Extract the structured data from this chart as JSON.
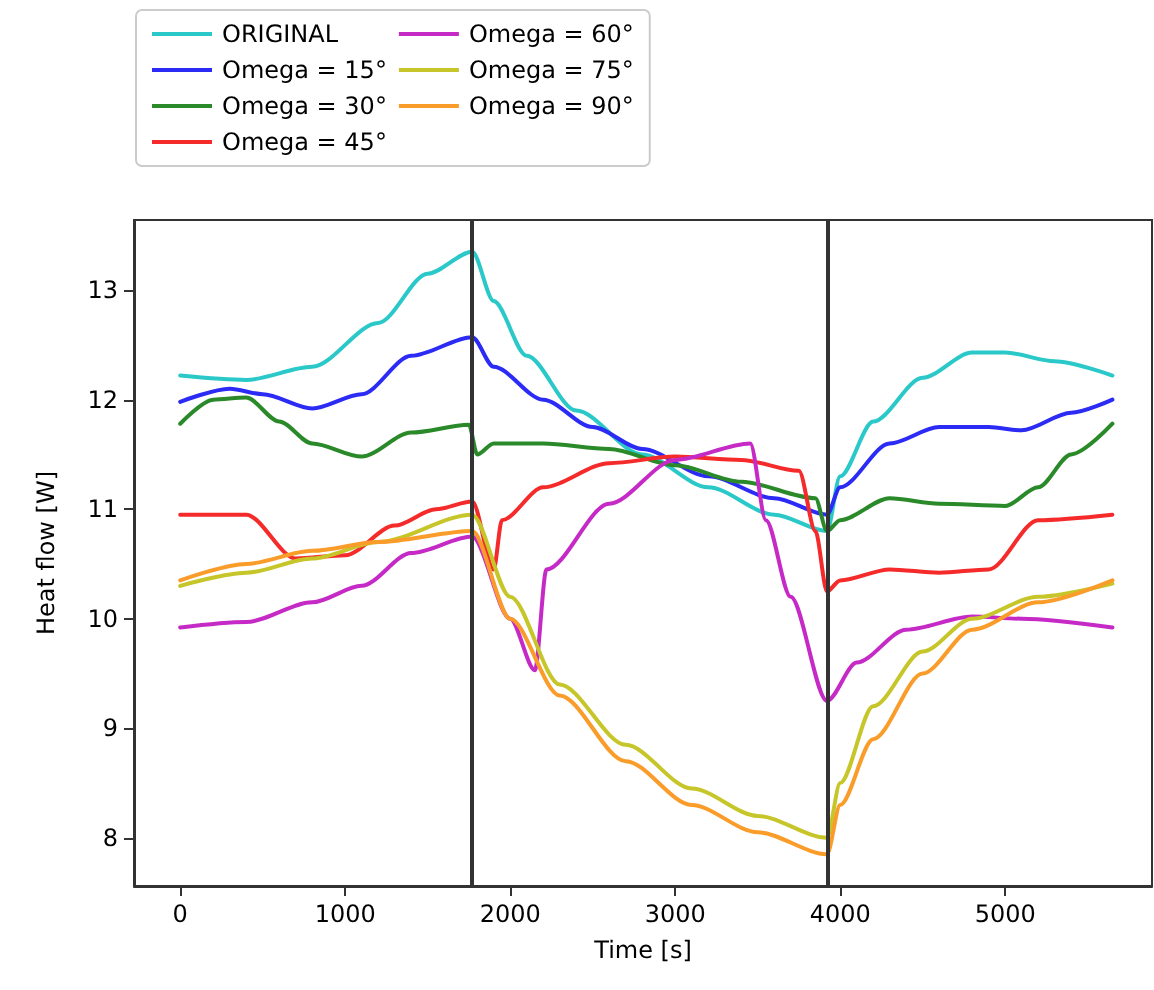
{
  "chart_data": {
    "type": "line",
    "xlabel": "Time [s]",
    "ylabel": "Heat flow [W]",
    "xlim": [
      -280,
      5890
    ],
    "ylim": [
      7.56,
      13.64
    ],
    "xticks": [
      0,
      1000,
      2000,
      3000,
      4000,
      5000
    ],
    "yticks": [
      8,
      9,
      10,
      11,
      12,
      13
    ],
    "grid": false,
    "legend": "top",
    "marker": "none",
    "line_style": "solid",
    "ref_lines": [
      {
        "axis": "x",
        "value": 1770,
        "color": "#333333"
      },
      {
        "axis": "x",
        "value": 3920,
        "color": "#333333"
      }
    ],
    "series": [
      {
        "name": "ORIGINAL",
        "color": "#2ac8c8",
        "x": [
          0,
          400,
          800,
          1200,
          1500,
          1770,
          1900,
          2100,
          2400,
          2800,
          3200,
          3600,
          3920,
          4000,
          4200,
          4500,
          4800,
          5000,
          5300,
          5650
        ],
        "values": [
          12.22,
          12.18,
          12.3,
          12.7,
          13.15,
          13.35,
          12.9,
          12.4,
          11.9,
          11.5,
          11.2,
          10.95,
          10.8,
          11.3,
          11.8,
          12.2,
          12.43,
          12.43,
          12.35,
          12.22
        ]
      },
      {
        "name": "Omega = 15°",
        "color": "#2b2bf5",
        "x": [
          0,
          300,
          500,
          800,
          1100,
          1400,
          1770,
          1900,
          2200,
          2500,
          2800,
          3200,
          3600,
          3920,
          4000,
          4300,
          4600,
          4900,
          5100,
          5400,
          5650
        ],
        "values": [
          11.98,
          12.1,
          12.05,
          11.92,
          12.05,
          12.4,
          12.57,
          12.3,
          12.0,
          11.75,
          11.55,
          11.3,
          11.1,
          10.95,
          11.2,
          11.6,
          11.75,
          11.75,
          11.72,
          11.88,
          12.0
        ]
      },
      {
        "name": "Omega = 30°",
        "color": "#2a8a2a",
        "x": [
          0,
          200,
          400,
          600,
          800,
          1100,
          1400,
          1750,
          1800,
          1900,
          2200,
          2600,
          3000,
          3400,
          3850,
          3920,
          4000,
          4300,
          4600,
          5000,
          5200,
          5400,
          5650
        ],
        "values": [
          11.78,
          12.0,
          12.02,
          11.8,
          11.6,
          11.48,
          11.7,
          11.77,
          11.5,
          11.6,
          11.6,
          11.55,
          11.4,
          11.25,
          11.1,
          10.8,
          10.9,
          11.1,
          11.05,
          11.03,
          11.2,
          11.5,
          11.78
        ]
      },
      {
        "name": "Omega = 45°",
        "color": "#f52a2a",
        "x": [
          0,
          400,
          700,
          1000,
          1300,
          1550,
          1770,
          1900,
          1950,
          2200,
          2600,
          3000,
          3400,
          3750,
          3850,
          3920,
          4000,
          4300,
          4600,
          4900,
          5200,
          5650
        ],
        "values": [
          10.95,
          10.95,
          10.55,
          10.58,
          10.85,
          11.0,
          11.07,
          10.45,
          10.9,
          11.2,
          11.42,
          11.48,
          11.45,
          11.35,
          10.8,
          10.25,
          10.35,
          10.45,
          10.42,
          10.45,
          10.9,
          10.95
        ]
      },
      {
        "name": "Omega = 60°",
        "color": "#c62ac6",
        "x": [
          0,
          400,
          800,
          1100,
          1400,
          1770,
          2000,
          2150,
          2220,
          2600,
          3000,
          3455,
          3550,
          3700,
          3920,
          4100,
          4400,
          4800,
          5100,
          5650
        ],
        "values": [
          9.92,
          9.97,
          10.15,
          10.3,
          10.6,
          10.75,
          10.0,
          9.53,
          10.45,
          11.05,
          11.45,
          11.6,
          10.9,
          10.2,
          9.25,
          9.6,
          9.9,
          10.02,
          10.0,
          9.92
        ]
      },
      {
        "name": "Omega = 75°",
        "color": "#c6c62a",
        "x": [
          0,
          400,
          800,
          1200,
          1770,
          2000,
          2300,
          2700,
          3100,
          3500,
          3920,
          4000,
          4200,
          4500,
          4800,
          5200,
          5650
        ],
        "values": [
          10.3,
          10.42,
          10.55,
          10.7,
          10.95,
          10.2,
          9.4,
          8.85,
          8.45,
          8.2,
          8.0,
          8.5,
          9.2,
          9.7,
          10.0,
          10.2,
          10.32
        ]
      },
      {
        "name": "Omega = 90°",
        "color": "#fa9c2a",
        "x": [
          0,
          400,
          800,
          1200,
          1770,
          2000,
          2300,
          2700,
          3100,
          3500,
          3920,
          4000,
          4200,
          4500,
          4800,
          5200,
          5650
        ],
        "values": [
          10.35,
          10.5,
          10.62,
          10.7,
          10.8,
          10.0,
          9.3,
          8.7,
          8.3,
          8.05,
          7.85,
          8.3,
          8.9,
          9.5,
          9.9,
          10.15,
          10.35
        ]
      }
    ]
  }
}
